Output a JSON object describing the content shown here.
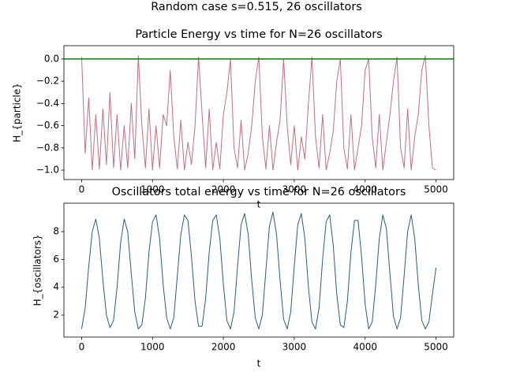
{
  "title": "Random case s=0.515, 26 oscillators",
  "chart_data": [
    {
      "type": "line",
      "title": "Particle Energy vs time for N=26 oscillators",
      "x_label": "t",
      "y_label": "H_{particle}",
      "xlim": [
        -250,
        5250
      ],
      "ylim": [
        -1.085,
        0.12
      ],
      "xticks": [
        0,
        1000,
        2000,
        3000,
        4000,
        5000
      ],
      "yticks": [
        {
          "value": 0,
          "label": "0.0"
        },
        {
          "value": -0.2,
          "label": "−0.2"
        },
        {
          "value": -0.4,
          "label": "−0.4"
        },
        {
          "value": -0.6,
          "label": "−0.6"
        },
        {
          "value": -0.8,
          "label": "−0.8"
        },
        {
          "value": -1.0,
          "label": "−1.0"
        }
      ],
      "hlines": [
        {
          "y": 0,
          "color": "#008000"
        }
      ],
      "x": [
        0,
        50,
        100,
        150,
        200,
        250,
        300,
        350,
        400,
        450,
        500,
        550,
        600,
        650,
        700,
        750,
        800,
        850,
        900,
        950,
        1000,
        1050,
        1100,
        1150,
        1200,
        1250,
        1300,
        1350,
        1400,
        1450,
        1500,
        1550,
        1600,
        1650,
        1700,
        1750,
        1800,
        1850,
        1900,
        1950,
        2000,
        2050,
        2100,
        2150,
        2200,
        2250,
        2300,
        2350,
        2400,
        2450,
        2500,
        2550,
        2600,
        2650,
        2700,
        2750,
        2800,
        2850,
        2900,
        2950,
        3000,
        3050,
        3100,
        3150,
        3200,
        3250,
        3300,
        3350,
        3400,
        3450,
        3500,
        3550,
        3600,
        3650,
        3700,
        3750,
        3800,
        3850,
        3900,
        3950,
        4000,
        4050,
        4100,
        4150,
        4200,
        4250,
        4300,
        4350,
        4400,
        4450,
        4500,
        4550,
        4600,
        4650,
        4700,
        4750,
        4800,
        4850,
        4900,
        4950,
        5000
      ],
      "series": [
        {
          "color": "#c07080",
          "values": [
            0.02,
            -0.85,
            -0.35,
            -1.0,
            -0.5,
            -0.99,
            -0.45,
            -0.95,
            -0.3,
            -0.98,
            -0.5,
            -1.0,
            -0.6,
            -0.98,
            -0.4,
            -0.9,
            0.03,
            -0.6,
            -0.98,
            -0.45,
            -1.0,
            -0.6,
            -0.98,
            -0.5,
            -0.6,
            -0.1,
            -0.7,
            -0.99,
            -0.55,
            -1.0,
            -0.75,
            -0.95,
            -0.6,
            0.02,
            -0.5,
            -0.98,
            -0.45,
            -1.0,
            -0.75,
            -0.99,
            -0.5,
            -0.3,
            0.0,
            -0.8,
            -0.98,
            -0.55,
            -1.0,
            -0.85,
            -0.6,
            -0.2,
            0.02,
            -0.7,
            -0.99,
            -0.6,
            -1.0,
            -0.75,
            -0.55,
            0.0,
            -0.6,
            -0.95,
            -0.6,
            -1.0,
            -0.7,
            -0.9,
            -0.4,
            0.02,
            -0.7,
            -0.98,
            -0.5,
            -1.0,
            -0.85,
            -0.65,
            -0.2,
            0.0,
            -0.8,
            -0.99,
            -0.5,
            -1.0,
            -0.8,
            -0.6,
            -0.1,
            0.0,
            -0.7,
            -0.98,
            -0.5,
            -1.0,
            -0.75,
            -0.5,
            -0.2,
            0.02,
            -0.8,
            -0.98,
            -0.45,
            -1.0,
            -0.7,
            -0.5,
            -0.1,
            0.03,
            -0.6,
            -0.98,
            -1.0
          ]
        }
      ]
    },
    {
      "type": "line",
      "title": "Oscillators total energy vs time for N=26 oscillators",
      "x_label": "t",
      "y_label": "H_{oscillators}",
      "xlim": [
        -250,
        5250
      ],
      "ylim": [
        0.42,
        10.04
      ],
      "xticks": [
        0,
        1000,
        2000,
        3000,
        4000,
        5000
      ],
      "yticks": [
        2,
        4,
        6,
        8
      ],
      "x": [
        0,
        50,
        100,
        150,
        200,
        250,
        300,
        350,
        400,
        450,
        500,
        550,
        600,
        650,
        700,
        750,
        800,
        850,
        900,
        950,
        1000,
        1050,
        1100,
        1150,
        1200,
        1250,
        1300,
        1350,
        1400,
        1450,
        1500,
        1550,
        1600,
        1650,
        1700,
        1750,
        1800,
        1850,
        1900,
        1950,
        2000,
        2050,
        2100,
        2150,
        2200,
        2250,
        2300,
        2350,
        2400,
        2450,
        2500,
        2550,
        2600,
        2650,
        2700,
        2750,
        2800,
        2850,
        2900,
        2950,
        3000,
        3050,
        3100,
        3150,
        3200,
        3250,
        3300,
        3350,
        3400,
        3450,
        3500,
        3550,
        3600,
        3650,
        3700,
        3750,
        3800,
        3850,
        3900,
        3950,
        4000,
        4050,
        4100,
        4150,
        4200,
        4250,
        4300,
        4350,
        4400,
        4450,
        4500,
        4550,
        4600,
        4650,
        4700,
        4750,
        4800,
        4850,
        4900,
        4950,
        5000
      ],
      "series": [
        {
          "color": "#2a5f7a",
          "values": [
            1.0,
            2.5,
            5.5,
            8.0,
            8.9,
            7.5,
            4.5,
            2.0,
            1.1,
            1.6,
            4.0,
            7.2,
            8.9,
            8.0,
            5.0,
            2.2,
            1.0,
            1.3,
            3.2,
            6.5,
            8.7,
            9.2,
            7.5,
            4.2,
            1.8,
            1.0,
            1.8,
            4.8,
            7.8,
            9.2,
            8.8,
            6.2,
            3.0,
            1.2,
            1.2,
            3.2,
            6.5,
            8.8,
            9.2,
            7.5,
            4.2,
            1.6,
            1.0,
            2.2,
            5.5,
            8.5,
            9.3,
            7.8,
            4.5,
            1.8,
            1.0,
            2.0,
            5.2,
            8.4,
            9.4,
            7.8,
            4.5,
            1.7,
            1.0,
            2.2,
            5.5,
            8.5,
            9.3,
            7.5,
            4.0,
            1.5,
            1.0,
            2.5,
            6.0,
            8.7,
            9.2,
            7.0,
            3.5,
            1.3,
            1.1,
            3.0,
            6.5,
            8.8,
            8.8,
            6.2,
            2.8,
            1.0,
            1.5,
            4.2,
            7.5,
            9.2,
            8.2,
            5.0,
            1.9,
            1.0,
            1.8,
            4.8,
            8.0,
            9.2,
            7.5,
            4.2,
            1.6,
            1.0,
            1.5,
            3.5,
            5.4
          ]
        }
      ]
    }
  ]
}
